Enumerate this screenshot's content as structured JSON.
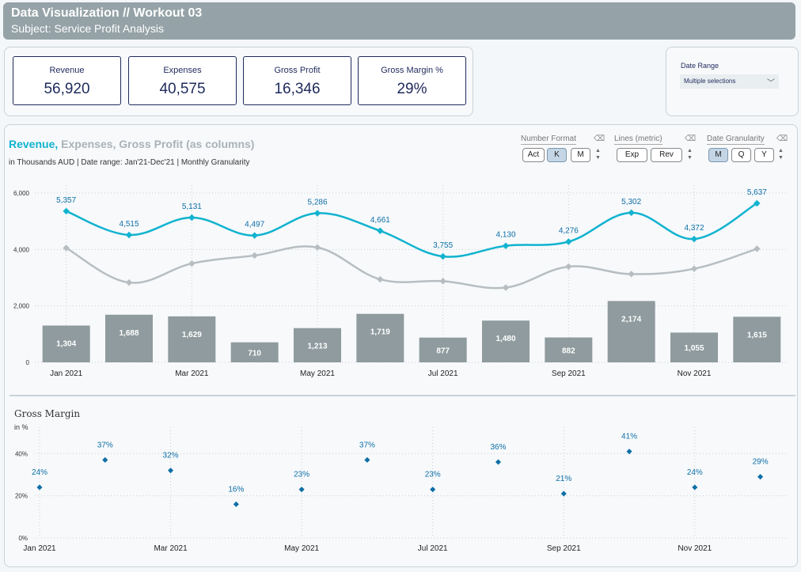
{
  "header": {
    "title": "Data Visualization // Workout 03",
    "subtitle": "Subject: Service Profit Analysis"
  },
  "kpis": [
    {
      "label": "Revenue",
      "value": "56,920"
    },
    {
      "label": "Expenses",
      "value": "40,575"
    },
    {
      "label": "Gross Profit",
      "value": "16,346"
    },
    {
      "label": "Gross Margin %",
      "value": "29%"
    }
  ],
  "date_filter": {
    "label": "Date Range",
    "value": "Multiple selections",
    "icon": "chevron-down-icon"
  },
  "chart_header": {
    "title_part1": "Revenue,",
    "title_part2": "Expenses,",
    "title_part3": "Gross Profit (as columns)",
    "subtitle": "in Thousands AUD | Date range: Jan'21-Dec'21 | Monthly Granularity",
    "colors": {
      "revenue": "#11b3cf",
      "expenses": "#a9b3b7",
      "profit": "#8f9b9e",
      "margin": "#0e6fa6"
    }
  },
  "controls": {
    "number_format": {
      "label": "Number Format",
      "options": [
        "Act",
        "K",
        "M"
      ],
      "selected": "K"
    },
    "lines": {
      "label": "Lines (metric)",
      "options": [
        "Exp",
        "Rev"
      ]
    },
    "granularity": {
      "label": "Date Granularity",
      "options": [
        "M",
        "Q",
        "Y"
      ],
      "selected": "M"
    }
  },
  "margin_header": {
    "title": "Gross Margin",
    "subtitle": "in %"
  },
  "chart_data": [
    {
      "type": "bar+line",
      "categories": [
        "Jan 2021",
        "Feb 2021",
        "Mar 2021",
        "Apr 2021",
        "May 2021",
        "Jun 2021",
        "Jul 2021",
        "Aug 2021",
        "Sep 2021",
        "Oct 2021",
        "Nov 2021",
        "Dec 2021"
      ],
      "x_tick_labels": [
        "Jan 2021",
        "",
        "Mar 2021",
        "",
        "May 2021",
        "",
        "Jul 2021",
        "",
        "Sep 2021",
        "",
        "Nov 2021",
        ""
      ],
      "series": [
        {
          "name": "Revenue",
          "type": "line",
          "values": [
            5357,
            4515,
            5131,
            4497,
            5286,
            4661,
            3755,
            4130,
            4276,
            5302,
            4372,
            5637
          ],
          "labels": [
            "5,357",
            "4,515",
            "5,131",
            "4,497",
            "5,286",
            "4,661",
            "3,755",
            "4,130",
            "4,276",
            "5,302",
            "4,372",
            "5,637"
          ]
        },
        {
          "name": "Expenses",
          "type": "line",
          "values": [
            4053,
            2827,
            3502,
            3787,
            4073,
            2942,
            2878,
            2650,
            3394,
            3128,
            3317,
            4022
          ]
        },
        {
          "name": "Gross Profit",
          "type": "bar",
          "values": [
            1304,
            1688,
            1629,
            710,
            1213,
            1719,
            877,
            1480,
            882,
            2174,
            1055,
            1615
          ],
          "labels": [
            "1,304",
            "1,688",
            "1,629",
            "710",
            "1,213",
            "1,719",
            "877",
            "1,480",
            "882",
            "2,174",
            "1,055",
            "1,615"
          ]
        }
      ],
      "ylim": [
        0,
        6000
      ],
      "y_ticks": [
        0,
        2000,
        4000,
        6000
      ],
      "y_tick_labels": [
        "0",
        "2,000",
        "4,000",
        "6,000"
      ],
      "grid": true
    },
    {
      "type": "scatter",
      "title": "Gross Margin",
      "ylabel": "in %",
      "categories": [
        "Jan 2021",
        "Feb 2021",
        "Mar 2021",
        "Apr 2021",
        "May 2021",
        "Jun 2021",
        "Jul 2021",
        "Aug 2021",
        "Sep 2021",
        "Oct 2021",
        "Nov 2021",
        "Dec 2021"
      ],
      "x_tick_labels": [
        "Jan 2021",
        "",
        "Mar 2021",
        "",
        "May 2021",
        "",
        "Jul 2021",
        "",
        "Sep 2021",
        "",
        "Nov 2021",
        ""
      ],
      "values": [
        24,
        37,
        32,
        16,
        23,
        37,
        23,
        36,
        21,
        41,
        24,
        29
      ],
      "labels": [
        "24%",
        "37%",
        "32%",
        "16%",
        "23%",
        "37%",
        "23%",
        "36%",
        "21%",
        "41%",
        "24%",
        "29%"
      ],
      "ylim": [
        0,
        45
      ],
      "y_ticks": [
        0,
        20,
        40
      ],
      "y_tick_labels": [
        "0%",
        "20%",
        "40%"
      ],
      "grid": true
    }
  ]
}
